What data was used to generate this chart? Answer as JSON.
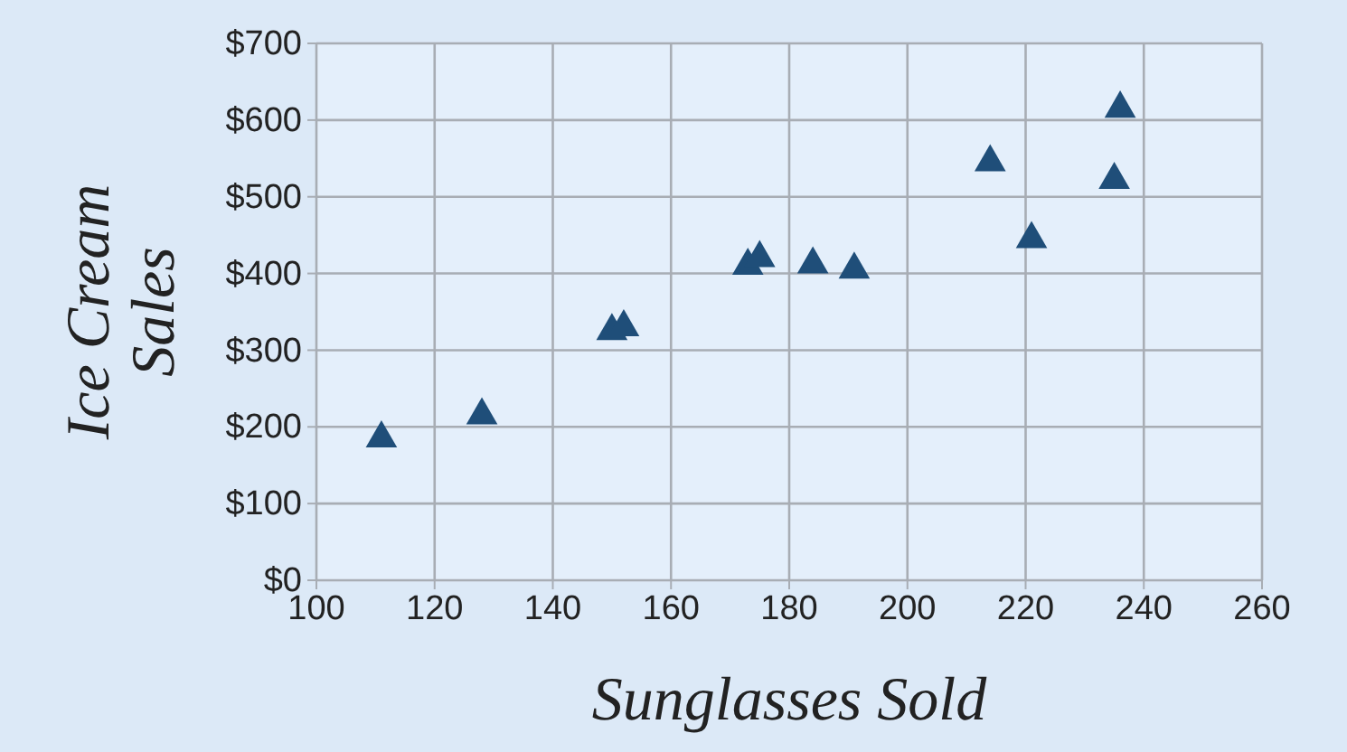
{
  "chart_data": {
    "type": "scatter",
    "xlabel": "Sunglasses Sold",
    "ylabel": "Ice Cream Sales",
    "x": [
      111,
      128,
      150,
      152,
      173,
      175,
      184,
      191,
      214,
      221,
      235,
      236
    ],
    "values": [
      185,
      215,
      325,
      330,
      410,
      420,
      412,
      405,
      545,
      445,
      522,
      615
    ],
    "color": "#1f4e79",
    "marker": "triangle",
    "grid": true,
    "xlim": [
      100,
      260
    ],
    "xticks": [
      100,
      120,
      140,
      160,
      180,
      200,
      220,
      240,
      260
    ],
    "ylim": [
      0,
      700
    ],
    "yticks": [
      {
        "value": 0,
        "label": "$0"
      },
      {
        "value": 100,
        "label": "$100"
      },
      {
        "value": 200,
        "label": "$200"
      },
      {
        "value": 300,
        "label": "$300"
      },
      {
        "value": 400,
        "label": "$400"
      },
      {
        "value": 500,
        "label": "$500"
      },
      {
        "value": 600,
        "label": "$600"
      },
      {
        "value": 700,
        "label": "$700"
      }
    ]
  }
}
